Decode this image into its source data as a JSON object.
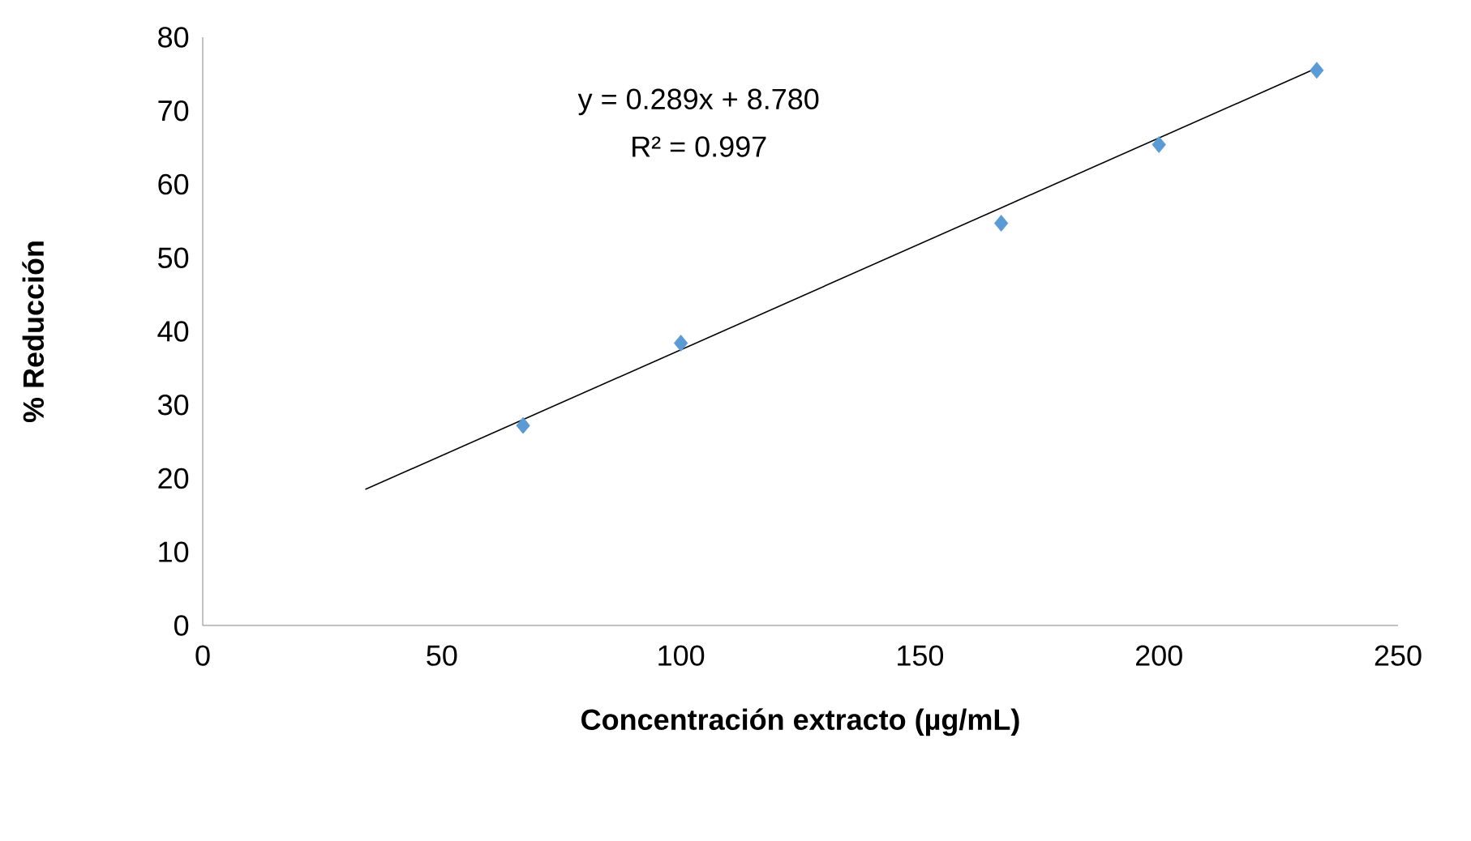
{
  "chart_data": {
    "type": "scatter",
    "xlabel": "Concentración extracto (µg/mL)",
    "ylabel": "% Reducción",
    "annotations": [
      "y = 0.289x + 8.780",
      "R² = 0.997"
    ],
    "xlim": [
      0,
      250
    ],
    "xticks": [
      0,
      50,
      100,
      150,
      200,
      250
    ],
    "ylim": [
      0,
      80
    ],
    "yticks": [
      0,
      10,
      20,
      30,
      40,
      50,
      60,
      70,
      80
    ],
    "grid": false,
    "legend": false,
    "marker": "diamond",
    "series": [
      {
        "color": "#5b9bd5",
        "x": [
          67,
          100,
          167,
          200,
          233
        ],
        "values": [
          27.2,
          38.4,
          54.7,
          65.4,
          75.5
        ]
      },
      {
        "type": "line",
        "color": "#000000",
        "marker": "none",
        "x": [
          34,
          233
        ],
        "values": [
          18.5,
          75.8
        ]
      }
    ]
  }
}
